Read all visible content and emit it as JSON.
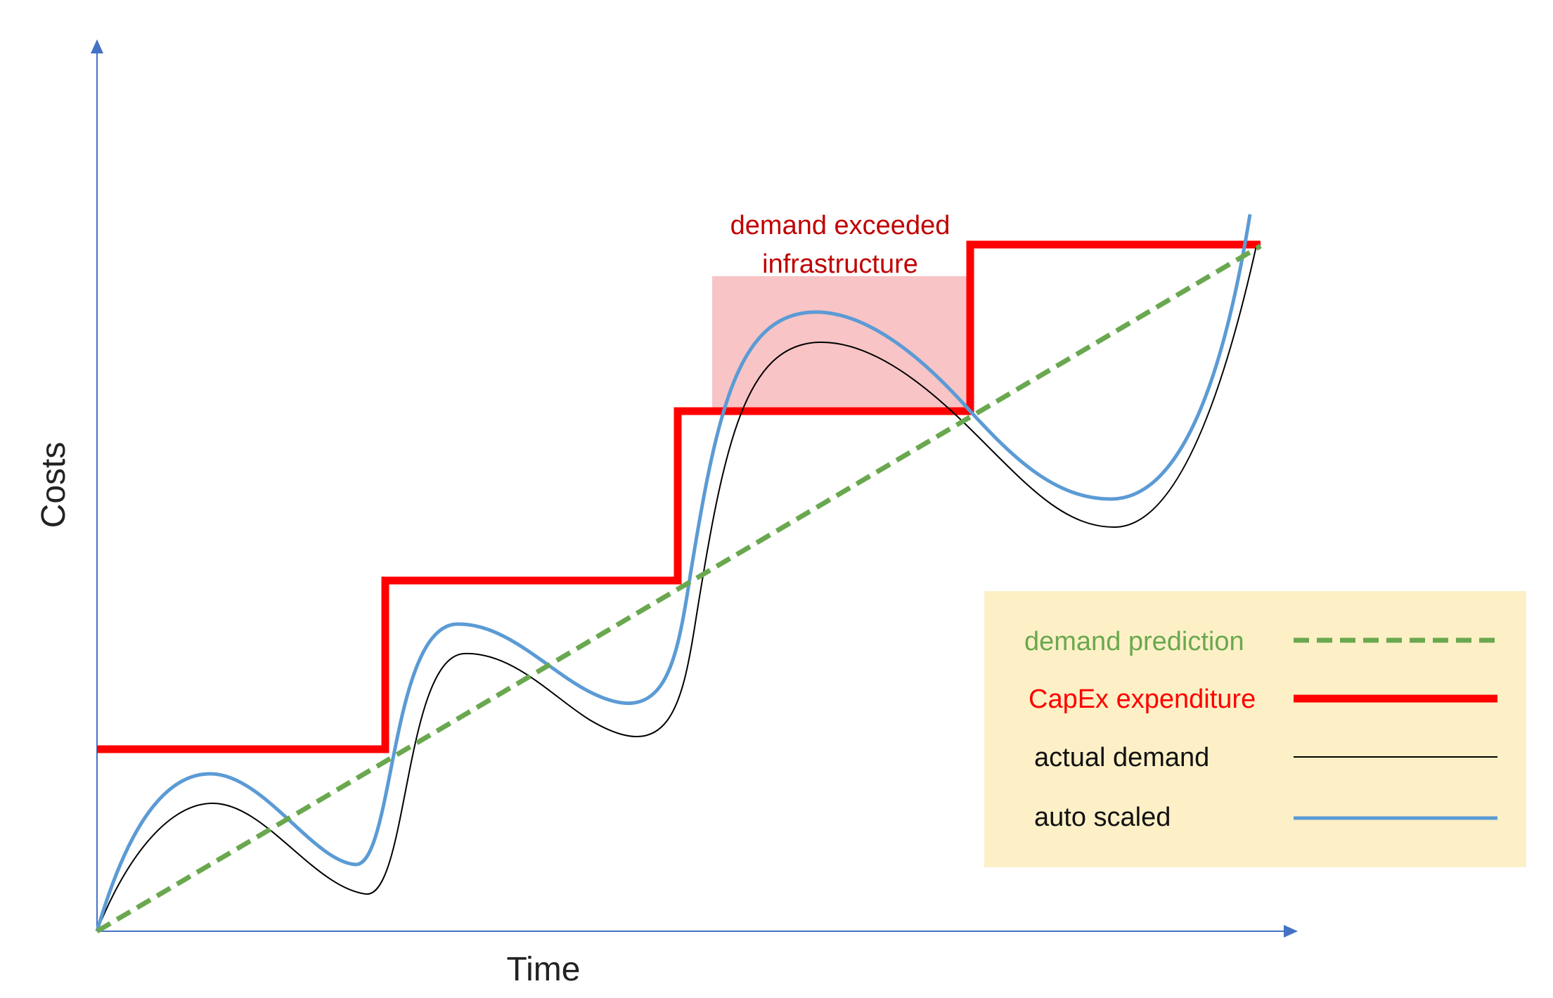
{
  "axes": {
    "y_label": "Costs",
    "x_label": "Time"
  },
  "annotation": {
    "line1": "demand exceeded",
    "line2": "infrastructure"
  },
  "legend": {
    "items": [
      {
        "label": "demand prediction",
        "color": "#6aa84f",
        "style": "dashed"
      },
      {
        "label": "CapEx expenditure",
        "color": "#ff0000",
        "style": "thick"
      },
      {
        "label": "actual demand",
        "color": "#000000",
        "style": "thin"
      },
      {
        "label": "auto scaled",
        "color": "#5b9bd5",
        "style": "medium"
      }
    ]
  },
  "colors": {
    "axis": "#4472c4",
    "prediction": "#6aa84f",
    "capex": "#ff0000",
    "actual": "#000000",
    "autoscaled": "#5b9bd5",
    "highlight": "#f8b4b8",
    "legend_bg": "#fdf0c6",
    "annotation_text": "#c00000"
  }
}
